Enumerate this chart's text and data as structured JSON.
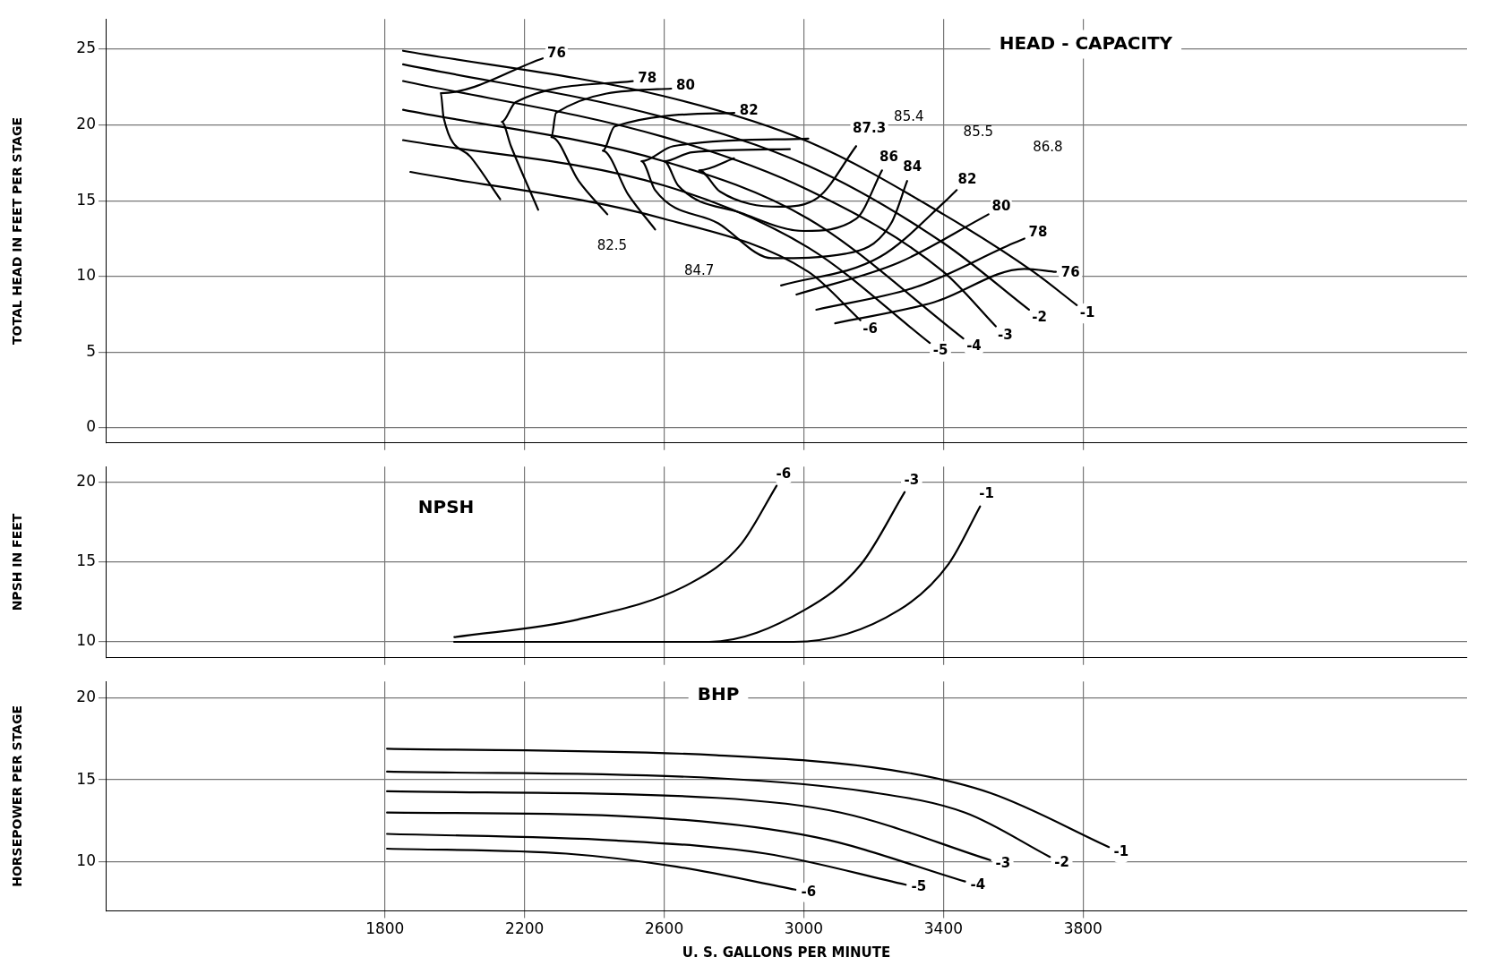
{
  "chart_data": [
    {
      "type": "line",
      "title": "HEAD - CAPACITY",
      "ylabel": "TOTAL HEAD IN FEET PER STAGE",
      "xlim": [
        1000,
        4900
      ],
      "xticks": [
        1800,
        2200,
        2600,
        3000,
        3400,
        3800
      ],
      "ylim": [
        -1,
        27
      ],
      "yticks": [
        0,
        5,
        10,
        15,
        20,
        25
      ],
      "grid": true,
      "tick_labels": "y",
      "legend": false,
      "marker": "none",
      "line_style": "solid",
      "series": [
        {
          "name": "-1",
          "color": "#000000",
          "x": [
            1852,
            2600,
            3013,
            3400,
            3658,
            3782
          ],
          "values": [
            24.9,
            21.9,
            18.9,
            14.1,
            10.3,
            8.1
          ]
        },
        {
          "name": "-2",
          "color": "#000000",
          "x": [
            1852,
            2600,
            3013,
            3400,
            3645
          ],
          "values": [
            24.0,
            20.5,
            17.3,
            12.2,
            7.8
          ]
        },
        {
          "name": "-3",
          "color": "#000000",
          "x": [
            1852,
            2600,
            3013,
            3400,
            3550
          ],
          "values": [
            22.9,
            19.2,
            15.7,
            10.3,
            6.7
          ]
        },
        {
          "name": "-4",
          "color": "#000000",
          "x": [
            1852,
            2600,
            3013,
            3457
          ],
          "values": [
            21.0,
            17.6,
            13.8,
            5.9
          ]
        },
        {
          "name": "-5",
          "color": "#000000",
          "x": [
            1852,
            2600,
            3013,
            3361
          ],
          "values": [
            19.0,
            16.0,
            11.9,
            5.6
          ]
        },
        {
          "name": "-6",
          "color": "#000000",
          "x": [
            1873,
            2600,
            3013,
            3162
          ],
          "values": [
            16.9,
            13.8,
            10.3,
            7.1
          ]
        },
        {
          "name": "76",
          "color": "#000000",
          "x": [
            2252,
            1960,
            1968,
            2045,
            2130,
            null,
            3090,
            3374,
            3632,
            3722
          ],
          "values": [
            24.4,
            22.1,
            20.5,
            17.9,
            15.1,
            null,
            6.9,
            8.3,
            10.5,
            10.3
          ]
        },
        {
          "name": "78",
          "color": "#000000",
          "x": [
            2510,
            2174,
            2135,
            2161,
            2239,
            null,
            3036,
            3322,
            3601,
            3632
          ],
          "values": [
            22.9,
            21.5,
            20.2,
            18.6,
            14.4,
            null,
            7.8,
            9.3,
            12.2,
            12.5
          ]
        },
        {
          "name": "80",
          "color": "#000000",
          "x": [
            2620,
            2290,
            2277,
            2355,
            2437,
            null,
            2979,
            3271,
            3498,
            3529
          ],
          "values": [
            22.4,
            20.8,
            19.2,
            16.3,
            14.1,
            null,
            8.8,
            10.9,
            13.7,
            14.1
          ]
        },
        {
          "name": "82",
          "color": "#000000",
          "x": [
            2801,
            2458,
            2424,
            2497,
            2574,
            null,
            2935,
            3219,
            3407,
            3438
          ],
          "values": [
            20.8,
            19.9,
            18.3,
            15.4,
            13.1,
            null,
            9.4,
            11.3,
            15.0,
            15.7
          ]
        },
        {
          "name": "84",
          "color": "#000000",
          "x": [
            3013,
            2626,
            2535,
            2574,
            2755,
            2909,
            3120,
            3250,
            3296
          ],
          "values": [
            19.1,
            18.6,
            17.6,
            15.7,
            13.5,
            11.2,
            11.5,
            13.5,
            16.3
          ]
        },
        {
          "name": "86",
          "color": "#000000",
          "x": [
            2960,
            2680,
            2600,
            2640,
            2820,
            3000,
            3150,
            3224
          ],
          "values": [
            18.4,
            18.2,
            17.6,
            16.0,
            14.2,
            13.0,
            13.8,
            17.0
          ]
        },
        {
          "name": "87.3",
          "color": "#000000",
          "x": [
            2800,
            2700,
            2760,
            2930,
            3040,
            3150
          ],
          "values": [
            17.8,
            17.0,
            15.6,
            14.6,
            15.2,
            18.6
          ]
        }
      ],
      "annotations": [
        "82.5",
        "85.4",
        "85.5",
        "86.8",
        "84.7"
      ]
    },
    {
      "type": "line",
      "title": "NPSH",
      "ylabel": "NPSH IN FEET",
      "xlim": [
        1000,
        4900
      ],
      "xticks": [
        1800,
        2200,
        2600,
        3000,
        3400,
        3800
      ],
      "ylim": [
        9,
        21
      ],
      "yticks": [
        10,
        15,
        20
      ],
      "grid": true,
      "tick_labels": "y",
      "legend": false,
      "marker": "none",
      "line_style": "solid",
      "series": [
        {
          "name": "-6",
          "color": "#000000",
          "x": [
            1999,
            2352,
            2677,
            2819,
            2922
          ],
          "values": [
            10.3,
            11.4,
            13.7,
            16.1,
            19.8
          ]
        },
        {
          "name": "-3",
          "color": "#000000",
          "x": [
            1999,
            2729,
            3002,
            3165,
            3289
          ],
          "values": [
            10.0,
            10.0,
            12.0,
            14.9,
            19.4
          ]
        },
        {
          "name": "-1",
          "color": "#000000",
          "x": [
            1999,
            2971,
            3273,
            3415,
            3505
          ],
          "values": [
            10.0,
            10.0,
            12.0,
            14.9,
            18.5
          ]
        }
      ]
    },
    {
      "type": "line",
      "title": "BHP",
      "ylabel": "HORSEPOWER PER STAGE",
      "xlabel": "U. S. GALLONS PER MINUTE",
      "xlim": [
        1000,
        4900
      ],
      "xticks": [
        1800,
        2200,
        2600,
        3000,
        3400,
        3800
      ],
      "ylim": [
        7,
        21
      ],
      "yticks": [
        10,
        15,
        20
      ],
      "grid": true,
      "legend": false,
      "marker": "none",
      "line_style": "solid",
      "series": [
        {
          "name": "-1",
          "color": "#000000",
          "x": [
            1806,
            2750,
            3250,
            3534,
            3874
          ],
          "values": [
            16.9,
            16.5,
            15.6,
            14.2,
            10.9
          ]
        },
        {
          "name": "-2",
          "color": "#000000",
          "x": [
            1806,
            2750,
            3175,
            3462,
            3705
          ],
          "values": [
            15.5,
            15.1,
            14.3,
            13.0,
            10.3
          ]
        },
        {
          "name": "-3",
          "color": "#000000",
          "x": [
            1806,
            2750,
            3106,
            3534
          ],
          "values": [
            14.3,
            13.9,
            13.0,
            10.1
          ]
        },
        {
          "name": "-4",
          "color": "#000000",
          "x": [
            1806,
            2463,
            3033,
            3462
          ],
          "values": [
            13.0,
            12.8,
            11.5,
            8.8
          ]
        },
        {
          "name": "-5",
          "color": "#000000",
          "x": [
            1806,
            2463,
            2891,
            3292
          ],
          "values": [
            11.7,
            11.3,
            10.5,
            8.6
          ]
        },
        {
          "name": "-6",
          "color": "#000000",
          "x": [
            1806,
            2319,
            2636,
            2976
          ],
          "values": [
            10.8,
            10.5,
            9.7,
            8.3
          ]
        }
      ]
    }
  ]
}
